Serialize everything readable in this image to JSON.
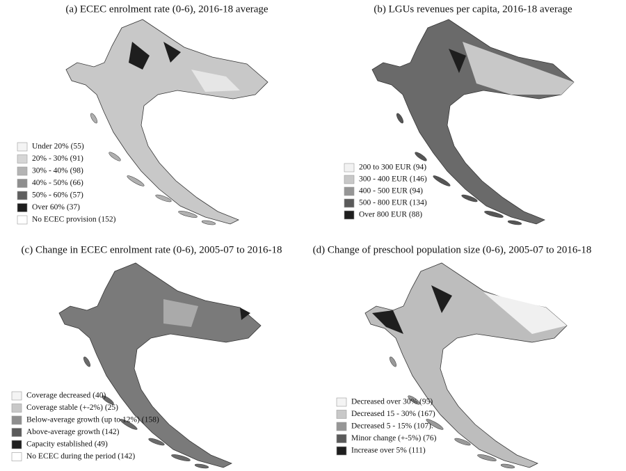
{
  "panels": [
    {
      "title": "(a) ECEC enrolment rate (0-6), 2016-18 average",
      "legend": [
        {
          "label": "Under 20% (55)",
          "color": "#f4f4f4"
        },
        {
          "label": "20% - 30% (91)",
          "color": "#d6d6d6"
        },
        {
          "label": "30% - 40% (98)",
          "color": "#b4b4b4"
        },
        {
          "label": "40% - 50% (66)",
          "color": "#8e8e8e"
        },
        {
          "label": "50% - 60% (57)",
          "color": "#5e5e5e"
        },
        {
          "label": "Over 60% (37)",
          "color": "#1e1e1e"
        },
        {
          "label": "No ECEC provision (152)",
          "color": "#ffffff"
        }
      ]
    },
    {
      "title": "(b) LGUs revenues per capita, 2016-18 average",
      "legend": [
        {
          "label": "200 to 300 EUR (94)",
          "color": "#f2f2f2"
        },
        {
          "label": "300 - 400 EUR (146)",
          "color": "#c8c8c8"
        },
        {
          "label": "400 - 500 EUR (94)",
          "color": "#969696"
        },
        {
          "label": "500 - 800 EUR (134)",
          "color": "#5a5a5a"
        },
        {
          "label": "Over 800 EUR (88)",
          "color": "#1e1e1e"
        }
      ]
    },
    {
      "title": "(c) Change in ECEC enrolment rate (0-6), 2005-07 to 2016-18",
      "legend": [
        {
          "label": "Coverage decreased (40)",
          "color": "#f4f4f4"
        },
        {
          "label": "Coverage stable (+-2%) (25)",
          "color": "#c8c8c8"
        },
        {
          "label": "Below-average growth (up to 12%) (158)",
          "color": "#8e8e8e"
        },
        {
          "label": "Above-average growth (142)",
          "color": "#5a5a5a"
        },
        {
          "label": "Capacity established (49)",
          "color": "#1e1e1e"
        },
        {
          "label": "No ECEC during the period (142)",
          "color": "#ffffff"
        }
      ]
    },
    {
      "title": "(d) Change of preschool population size (0-6), 2005-07 to 2016-18",
      "legend": [
        {
          "label": "Decreased over 30% (95)",
          "color": "#f4f4f4"
        },
        {
          "label": "Decreased 15 - 30% (167)",
          "color": "#c8c8c8"
        },
        {
          "label": "Decreased 5 - 15% (107).",
          "color": "#969696"
        },
        {
          "label": "Minor change (+-5%) (76)",
          "color": "#5a5a5a"
        },
        {
          "label": "Increase over 5% (111)",
          "color": "#1e1e1e"
        }
      ]
    }
  ]
}
